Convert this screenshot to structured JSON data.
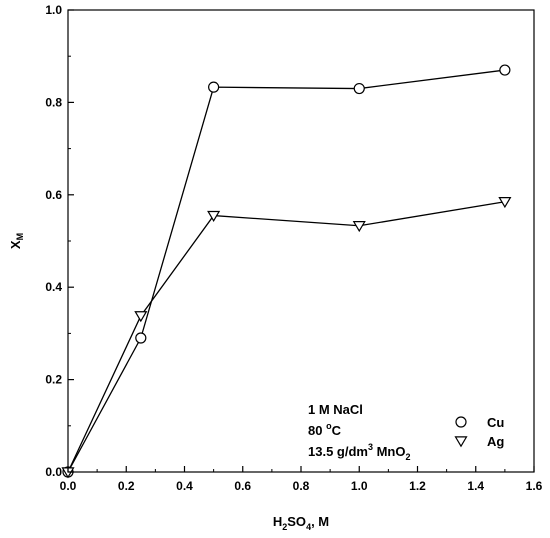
{
  "chart_data": {
    "type": "line",
    "title": "",
    "xlabel": {
      "main": "H",
      "sub1": "2",
      "mid": "SO",
      "sub2": "4",
      "tail": ", M"
    },
    "ylabel": {
      "main": "X",
      "sub": "M"
    },
    "xlim": [
      0.0,
      1.6
    ],
    "ylim": [
      0.0,
      1.0
    ],
    "x_ticks": [
      0.0,
      0.2,
      0.4,
      0.6,
      0.8,
      1.0,
      1.2,
      1.4,
      1.6
    ],
    "x_tick_labels": [
      "0.0",
      "0.2",
      "0.4",
      "0.6",
      "0.8",
      "1.0",
      "1.2",
      "1.4",
      "1.6"
    ],
    "y_ticks": [
      0.0,
      0.2,
      0.4,
      0.6,
      0.8,
      1.0
    ],
    "y_tick_labels": [
      "0.0",
      "0.2",
      "0.4",
      "0.6",
      "0.8",
      "1.0"
    ],
    "grid": false,
    "legend_position": "bottom-right",
    "series": [
      {
        "name": "Cu",
        "marker": "circle",
        "x": [
          0.0,
          0.25,
          0.5,
          1.0,
          1.5
        ],
        "y": [
          0.0,
          0.29,
          0.833,
          0.83,
          0.87
        ]
      },
      {
        "name": "Ag",
        "marker": "triangle-down",
        "x": [
          0.0,
          0.25,
          0.5,
          1.0,
          1.5
        ],
        "y": [
          0.0,
          0.338,
          0.555,
          0.533,
          0.585
        ]
      }
    ],
    "annotations": {
      "line1": "1 M NaCl",
      "line2_value": "80 ",
      "line2_sup": "o",
      "line2_unit": "C",
      "line3_value": "13.5 g/dm",
      "line3_sup": "3",
      "line3_mid": " MnO",
      "line3_sub": "2"
    }
  }
}
